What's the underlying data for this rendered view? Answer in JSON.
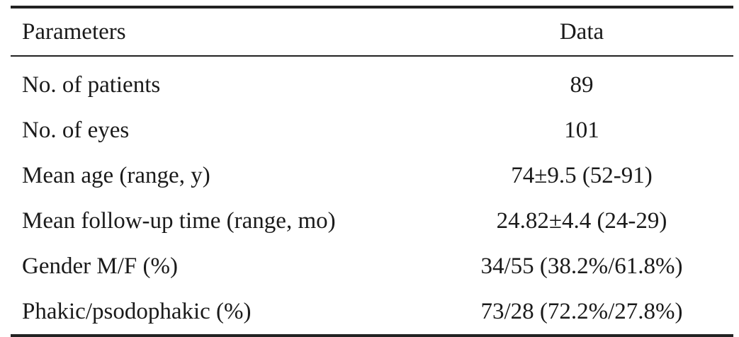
{
  "table": {
    "header": [
      "Parameters",
      "Data"
    ],
    "rows": [
      [
        "No. of patients",
        "89"
      ],
      [
        "No. of eyes",
        "101"
      ],
      [
        "Mean age (range, y)",
        "74±9.5 (52-91)"
      ],
      [
        "Mean follow-up time (range, mo)",
        "24.82±4.4 (24-29)"
      ],
      [
        "Gender M/F (%)",
        "34/55 (38.2%/61.8%)"
      ],
      [
        "Phakic/psodophakic (%)",
        "73/28 (72.2%/27.8%)"
      ]
    ]
  }
}
